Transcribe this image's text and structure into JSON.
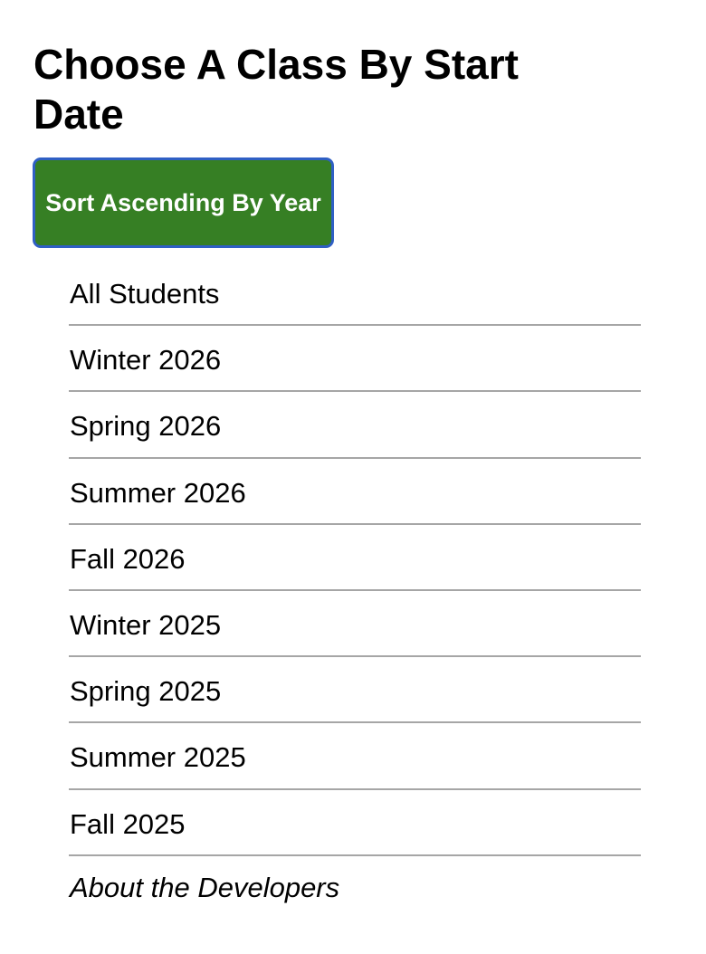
{
  "header": {
    "title": "Choose A Class By Start Date"
  },
  "sort_button": {
    "label": "Sort Ascending By Year",
    "background_color": "#367f24",
    "border_color": "#2f5fc4",
    "text_color": "#ffffff"
  },
  "class_list": {
    "items": [
      {
        "label": "All Students"
      },
      {
        "label": "Winter 2026"
      },
      {
        "label": "Spring 2026"
      },
      {
        "label": "Summer 2026"
      },
      {
        "label": "Fall 2026"
      },
      {
        "label": "Winter 2025"
      },
      {
        "label": "Spring 2025"
      },
      {
        "label": "Summer 2025"
      },
      {
        "label": "Fall 2025"
      }
    ]
  },
  "footer": {
    "about_link": "About the Developers"
  }
}
